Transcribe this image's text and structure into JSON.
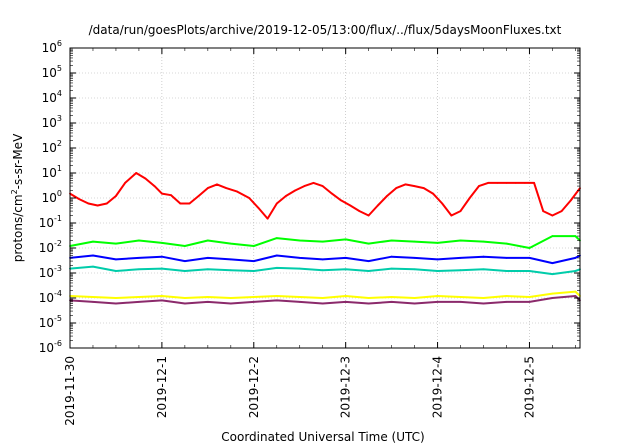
{
  "chart_data": {
    "type": "line",
    "title": "/data/run/goesPlots/archive/2019-12-05/13:00/flux/../flux/5daysMoonFluxes.txt",
    "xlabel": "Coordinated Universal Time (UTC)",
    "ylabel": {
      "base": "protons/cm",
      "sup": "2",
      "rest": "-s-sr-MeV"
    },
    "yscale": "log",
    "ylim_exp": [
      -6,
      6
    ],
    "y_ticks": [
      {
        "base": "10",
        "exp": "-6"
      },
      {
        "base": "10",
        "exp": "-5"
      },
      {
        "base": "10",
        "exp": "-4"
      },
      {
        "base": "10",
        "exp": "-3"
      },
      {
        "base": "10",
        "exp": "-2"
      },
      {
        "base": "10",
        "exp": "-1"
      },
      {
        "base": "10",
        "exp": "0"
      },
      {
        "base": "10",
        "exp": "1"
      },
      {
        "base": "10",
        "exp": "2"
      },
      {
        "base": "10",
        "exp": "3"
      },
      {
        "base": "10",
        "exp": "4"
      },
      {
        "base": "10",
        "exp": "5"
      },
      {
        "base": "10",
        "exp": "6"
      }
    ],
    "x_ticks": [
      "2019-11-30",
      "2019-12-1",
      "2019-12-2",
      "2019-12-3",
      "2019-12-4",
      "2019-12-5"
    ],
    "x_range_days": [
      0,
      5.55
    ],
    "grid": true,
    "legend": "none",
    "series": [
      {
        "color": "#ff0000",
        "x": [
          0,
          0.1,
          0.2,
          0.3,
          0.4,
          0.5,
          0.6,
          0.72,
          0.82,
          0.92,
          1.0,
          1.1,
          1.2,
          1.3,
          1.4,
          1.5,
          1.6,
          1.7,
          1.82,
          1.95,
          2.05,
          2.15,
          2.25,
          2.35,
          2.45,
          2.55,
          2.65,
          2.75,
          2.85,
          2.95,
          3.05,
          3.15,
          3.25,
          3.35,
          3.45,
          3.55,
          3.65,
          3.75,
          3.85,
          3.95,
          4.05,
          4.15,
          4.25,
          4.35,
          4.45,
          4.55,
          4.65,
          4.75,
          4.85,
          4.95,
          5.05,
          5.15,
          5.25,
          5.35,
          5.45,
          5.55
        ],
        "y": [
          1.5,
          0.9,
          0.6,
          0.5,
          0.6,
          1.2,
          4,
          10,
          6,
          3,
          1.5,
          1.3,
          0.6,
          0.6,
          1.2,
          2.5,
          3.5,
          2.5,
          1.8,
          1.0,
          0.4,
          0.15,
          0.6,
          1.2,
          2.0,
          3.0,
          4.0,
          3.0,
          1.5,
          0.8,
          0.5,
          0.3,
          0.2,
          0.5,
          1.2,
          2.5,
          3.5,
          3.0,
          2.5,
          1.5,
          0.6,
          0.2,
          0.3,
          1.0,
          3.0,
          4.0,
          4.0,
          4.0,
          4.0,
          4.0,
          4.0,
          0.3,
          0.2,
          0.3,
          0.8,
          2.5
        ]
      },
      {
        "color": "#00ff00",
        "x": [
          0,
          0.25,
          0.5,
          0.75,
          1.0,
          1.25,
          1.5,
          1.75,
          2.0,
          2.25,
          2.5,
          2.75,
          3.0,
          3.25,
          3.5,
          3.75,
          4.0,
          4.25,
          4.5,
          4.75,
          5.0,
          5.25,
          5.5,
          5.55
        ],
        "y": [
          0.012,
          0.018,
          0.015,
          0.02,
          0.016,
          0.012,
          0.02,
          0.015,
          0.012,
          0.025,
          0.02,
          0.018,
          0.022,
          0.015,
          0.02,
          0.018,
          0.016,
          0.02,
          0.018,
          0.015,
          0.01,
          0.03,
          0.03,
          0.02
        ]
      },
      {
        "color": "#0000ff",
        "x": [
          0,
          0.25,
          0.5,
          0.75,
          1.0,
          1.25,
          1.5,
          1.75,
          2.0,
          2.25,
          2.5,
          2.75,
          3.0,
          3.25,
          3.5,
          3.75,
          4.0,
          4.25,
          4.5,
          4.75,
          5.0,
          5.25,
          5.5,
          5.55
        ],
        "y": [
          0.004,
          0.005,
          0.0035,
          0.004,
          0.0045,
          0.003,
          0.004,
          0.0035,
          0.003,
          0.005,
          0.004,
          0.0035,
          0.004,
          0.003,
          0.0045,
          0.004,
          0.0035,
          0.004,
          0.0045,
          0.004,
          0.004,
          0.0025,
          0.004,
          0.005
        ]
      },
      {
        "color": "#00ccaa",
        "x": [
          0,
          0.25,
          0.5,
          0.75,
          1.0,
          1.25,
          1.5,
          1.75,
          2.0,
          2.25,
          2.5,
          2.75,
          3.0,
          3.25,
          3.5,
          3.75,
          4.0,
          4.25,
          4.5,
          4.75,
          5.0,
          5.25,
          5.5,
          5.55
        ],
        "y": [
          0.0015,
          0.0018,
          0.0012,
          0.0014,
          0.0015,
          0.0012,
          0.0014,
          0.0013,
          0.0012,
          0.0016,
          0.0015,
          0.0013,
          0.0014,
          0.0012,
          0.0015,
          0.0014,
          0.0012,
          0.0013,
          0.0014,
          0.0012,
          0.0012,
          0.0009,
          0.0012,
          0.0014
        ]
      },
      {
        "color": "#ffff00",
        "x": [
          0,
          0.25,
          0.5,
          0.75,
          1.0,
          1.25,
          1.5,
          1.75,
          2.0,
          2.25,
          2.5,
          2.75,
          3.0,
          3.25,
          3.5,
          3.75,
          4.0,
          4.25,
          4.5,
          4.75,
          5.0,
          5.25,
          5.5,
          5.55
        ],
        "y": [
          0.00012,
          0.00011,
          0.0001,
          0.00011,
          0.00012,
          0.0001,
          0.00011,
          0.0001,
          0.00011,
          0.00012,
          0.00011,
          0.0001,
          0.00012,
          0.0001,
          0.00011,
          0.0001,
          0.00012,
          0.00011,
          0.0001,
          0.00012,
          0.00011,
          0.00015,
          0.00018,
          0.00012
        ]
      },
      {
        "color": "#8b2a6b",
        "x": [
          0,
          0.25,
          0.5,
          0.75,
          1.0,
          1.25,
          1.5,
          1.75,
          2.0,
          2.25,
          2.5,
          2.75,
          3.0,
          3.25,
          3.5,
          3.75,
          4.0,
          4.25,
          4.5,
          4.75,
          5.0,
          5.25,
          5.5,
          5.55
        ],
        "y": [
          8e-05,
          7e-05,
          6e-05,
          7e-05,
          8e-05,
          6e-05,
          7e-05,
          6e-05,
          7e-05,
          8e-05,
          7e-05,
          6e-05,
          7e-05,
          6e-05,
          7e-05,
          6e-05,
          7e-05,
          7e-05,
          6e-05,
          7e-05,
          7e-05,
          0.0001,
          0.00012,
          8e-05
        ]
      }
    ]
  }
}
